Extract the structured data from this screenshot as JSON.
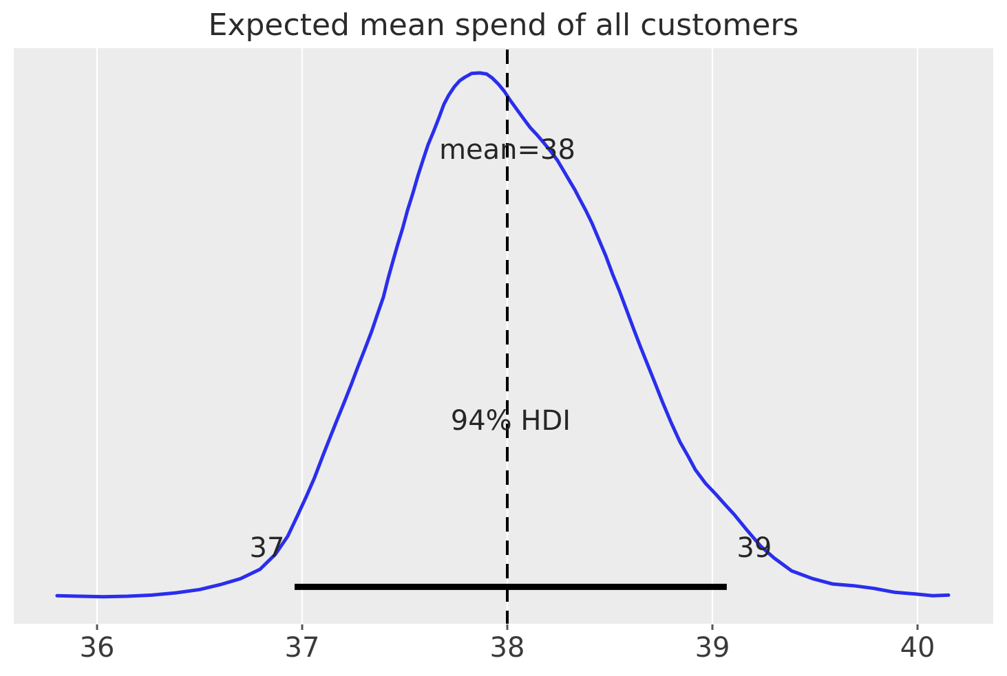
{
  "figure": {
    "title": "Expected mean spend of all customers"
  },
  "chart_data": {
    "type": "line",
    "title": "Expected mean spend of all customers",
    "xlabel": "",
    "ylabel": "",
    "xlim": [
      35.594,
      40.369
    ],
    "ylim": [
      0,
      1.045
    ],
    "x_ticks": [
      "36",
      "37",
      "38",
      "39",
      "40"
    ],
    "x_tick_values": [
      36,
      37,
      38,
      39,
      40
    ],
    "grid": {
      "vertical": true,
      "horizontal": false
    },
    "legend": "none",
    "series": [
      {
        "name": "posterior_kde_mean_spend",
        "points": [
          [
            35.805,
            0.051
          ],
          [
            35.913,
            0.05
          ],
          [
            36.03,
            0.049
          ],
          [
            36.148,
            0.05
          ],
          [
            36.265,
            0.052
          ],
          [
            36.383,
            0.056
          ],
          [
            36.5,
            0.062
          ],
          [
            36.601,
            0.071
          ],
          [
            36.701,
            0.082
          ],
          [
            36.795,
            0.099
          ],
          [
            36.869,
            0.126
          ],
          [
            36.93,
            0.159
          ],
          [
            36.977,
            0.196
          ],
          [
            37.02,
            0.231
          ],
          [
            37.06,
            0.265
          ],
          [
            37.104,
            0.308
          ],
          [
            37.138,
            0.34
          ],
          [
            37.171,
            0.371
          ],
          [
            37.205,
            0.402
          ],
          [
            37.238,
            0.433
          ],
          [
            37.272,
            0.467
          ],
          [
            37.305,
            0.498
          ],
          [
            37.339,
            0.531
          ],
          [
            37.366,
            0.561
          ],
          [
            37.396,
            0.593
          ],
          [
            37.419,
            0.627
          ],
          [
            37.44,
            0.655
          ],
          [
            37.466,
            0.689
          ],
          [
            37.49,
            0.718
          ],
          [
            37.513,
            0.75
          ],
          [
            37.54,
            0.782
          ],
          [
            37.564,
            0.813
          ],
          [
            37.591,
            0.844
          ],
          [
            37.614,
            0.87
          ],
          [
            37.641,
            0.894
          ],
          [
            37.668,
            0.92
          ],
          [
            37.691,
            0.943
          ],
          [
            37.715,
            0.96
          ],
          [
            37.742,
            0.975
          ],
          [
            37.768,
            0.986
          ],
          [
            37.792,
            0.992
          ],
          [
            37.826,
            0.999
          ],
          [
            37.866,
            1.0
          ],
          [
            37.899,
            0.998
          ],
          [
            37.926,
            0.991
          ],
          [
            37.956,
            0.98
          ],
          [
            37.987,
            0.966
          ],
          [
            38.013,
            0.951
          ],
          [
            38.044,
            0.935
          ],
          [
            38.077,
            0.918
          ],
          [
            38.111,
            0.901
          ],
          [
            38.144,
            0.888
          ],
          [
            38.178,
            0.873
          ],
          [
            38.211,
            0.858
          ],
          [
            38.245,
            0.841
          ],
          [
            38.272,
            0.824
          ],
          [
            38.302,
            0.805
          ],
          [
            38.329,
            0.788
          ],
          [
            38.356,
            0.769
          ],
          [
            38.383,
            0.75
          ],
          [
            38.413,
            0.727
          ],
          [
            38.446,
            0.698
          ],
          [
            38.48,
            0.668
          ],
          [
            38.513,
            0.635
          ],
          [
            38.547,
            0.604
          ],
          [
            38.581,
            0.57
          ],
          [
            38.614,
            0.537
          ],
          [
            38.648,
            0.504
          ],
          [
            38.681,
            0.473
          ],
          [
            38.718,
            0.439
          ],
          [
            38.755,
            0.404
          ],
          [
            38.799,
            0.365
          ],
          [
            38.842,
            0.33
          ],
          [
            38.883,
            0.303
          ],
          [
            38.916,
            0.28
          ],
          [
            38.966,
            0.255
          ],
          [
            39.017,
            0.235
          ],
          [
            39.06,
            0.217
          ],
          [
            39.107,
            0.198
          ],
          [
            39.168,
            0.17
          ],
          [
            39.235,
            0.141
          ],
          [
            39.302,
            0.119
          ],
          [
            39.386,
            0.096
          ],
          [
            39.487,
            0.082
          ],
          [
            39.587,
            0.072
          ],
          [
            39.688,
            0.069
          ],
          [
            39.789,
            0.064
          ],
          [
            39.889,
            0.057
          ],
          [
            39.99,
            0.054
          ],
          [
            40.074,
            0.051
          ],
          [
            40.151,
            0.052
          ]
        ]
      }
    ],
    "annotations": {
      "mean": {
        "value": 38,
        "label": "mean=38"
      },
      "hdi": {
        "prob": 0.94,
        "label": "94% HDI",
        "lower": 36.963,
        "upper": 39.07,
        "lower_label": "37",
        "upper_label": "39",
        "bar_height_norm": 0.067
      }
    }
  },
  "style": {
    "page_bg": "#ffffff",
    "plot_bg": "#ececec",
    "grid_color": "#ffffff",
    "curve_color": "#2a2eec",
    "ref_line_color": "#000000",
    "hdi_bar_color": "#000000",
    "title_color": "#2b2b2b",
    "annotation_color": "#262626",
    "tick_label_color": "#3a3a3a",
    "tick_mark_color": "#555555"
  }
}
